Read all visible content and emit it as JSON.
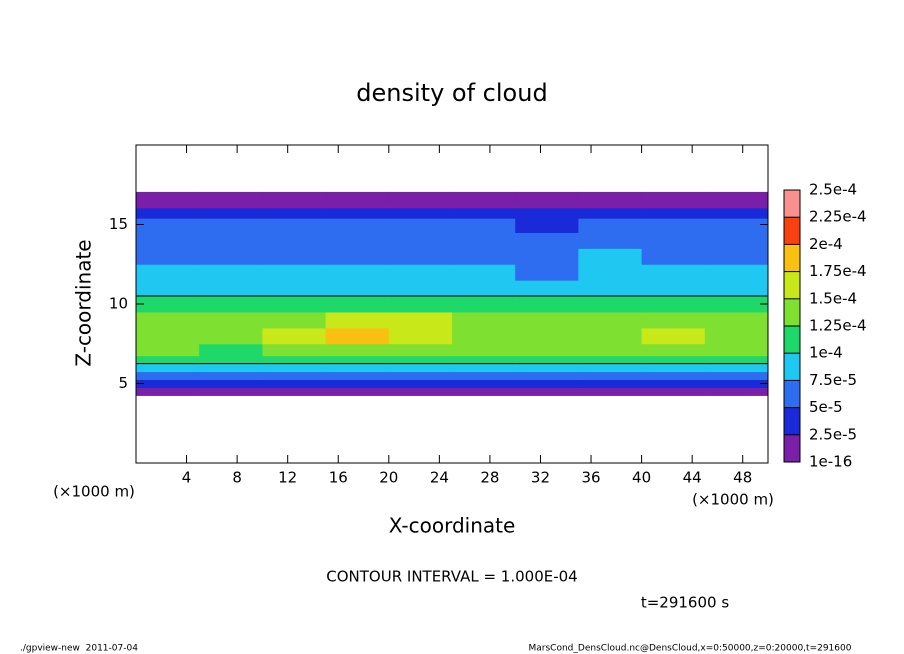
{
  "chart_data": {
    "type": "heatmap",
    "title": "density of cloud",
    "xlabel": "X-coordinate",
    "ylabel": "Z-coordinate",
    "x_unit": "(×1000 m)",
    "y_unit": "(×1000 m)",
    "xlim": [
      0,
      50
    ],
    "ylim": [
      0,
      20
    ],
    "xticks": [
      4,
      8,
      12,
      16,
      20,
      24,
      28,
      32,
      36,
      40,
      44,
      48
    ],
    "yticks": [
      5,
      10,
      15
    ],
    "x": [
      2.5,
      7.5,
      12.5,
      17.5,
      22.5,
      27.5,
      32.5,
      37.5,
      42.5,
      47.5
    ],
    "y": [
      4.5,
      5.0,
      5.5,
      6.0,
      6.5,
      7,
      8,
      9,
      10,
      11,
      12,
      13,
      14,
      15,
      15.8,
      16.3,
      16.8
    ],
    "values": [
      [
        1e-05,
        1e-05,
        1e-05,
        1e-05,
        1e-05,
        1e-05,
        1e-05,
        1e-05,
        1e-05,
        1e-05
      ],
      [
        4e-05,
        3.5e-05,
        4e-05,
        3.5e-05,
        4e-05,
        4e-05,
        3.5e-05,
        4e-05,
        4e-05,
        4e-05
      ],
      [
        6e-05,
        6.5e-05,
        6e-05,
        6e-05,
        6.5e-05,
        6e-05,
        6e-05,
        6.5e-05,
        6e-05,
        6e-05
      ],
      [
        8.5e-05,
        8e-05,
        9e-05,
        8.5e-05,
        8.5e-05,
        8e-05,
        8.5e-05,
        9e-05,
        8.5e-05,
        8e-05
      ],
      [
        0.000105,
        0.000102,
        0.00011,
        0.000108,
        0.000105,
        0.000103,
        0.000104,
        0.000106,
        0.000108,
        0.000102
      ],
      [
        0.000125,
        0.000122,
        0.000135,
        0.000145,
        0.000138,
        0.00013,
        0.000128,
        0.000132,
        0.00014,
        0.00013
      ],
      [
        0.00014,
        0.000138,
        0.000155,
        0.000185,
        0.000162,
        0.000148,
        0.000142,
        0.000145,
        0.000158,
        0.000145
      ],
      [
        0.000135,
        0.00013,
        0.000145,
        0.00017,
        0.00015,
        0.00014,
        0.000135,
        0.000138,
        0.000145,
        0.000138
      ],
      [
        0.000105,
        0.000108,
        0.000112,
        0.000115,
        0.00011,
        0.000108,
        0.000105,
        0.000102,
        0.000106,
        0.000104
      ],
      [
        8.8e-05,
        8.5e-05,
        9e-05,
        9e-05,
        8.8e-05,
        8.6e-05,
        8.4e-05,
        8.2e-05,
        8.5e-05,
        8.6e-05
      ],
      [
        7.8e-05,
        7.6e-05,
        7.8e-05,
        8e-05,
        7.8e-05,
        7.6e-05,
        7.4e-05,
        7.8e-05,
        7.6e-05,
        7.7e-05
      ],
      [
        7e-05,
        6.8e-05,
        7e-05,
        7.2e-05,
        7e-05,
        6.8e-05,
        6.5e-05,
        7.6e-05,
        7e-05,
        6.8e-05
      ],
      [
        6.2e-05,
        6e-05,
        6.2e-05,
        6.5e-05,
        6.2e-05,
        5.8e-05,
        5.6e-05,
        7e-05,
        6.2e-05,
        6e-05
      ],
      [
        5.5e-05,
        5.2e-05,
        5.5e-05,
        5.8e-05,
        5.4e-05,
        5.2e-05,
        4.8e-05,
        6e-05,
        5.5e-05,
        5.2e-05
      ],
      [
        3.5e-05,
        3.2e-05,
        3.5e-05,
        3.6e-05,
        3.3e-05,
        3e-05,
        3e-05,
        3.8e-05,
        3.4e-05,
        3.2e-05
      ],
      [
        1.5e-05,
        1.5e-05,
        1.5e-05,
        1.5e-05,
        1.5e-05,
        1.5e-05,
        1.5e-05,
        1.5e-05,
        1.5e-05,
        1.5e-05
      ],
      [
        8e-06,
        8e-06,
        8e-06,
        8e-06,
        8e-06,
        8e-06,
        8e-06,
        8e-06,
        8e-06,
        8e-06
      ]
    ],
    "contour_interval": 0.0001,
    "colorbar": {
      "ticks": [
        {
          "value": 1e-16,
          "label": "1e-16"
        },
        {
          "value": 2.5e-05,
          "label": "2.5e-5"
        },
        {
          "value": 5e-05,
          "label": "5e-5"
        },
        {
          "value": 7.5e-05,
          "label": "7.5e-5"
        },
        {
          "value": 0.0001,
          "label": "1e-4"
        },
        {
          "value": 0.000125,
          "label": "1.25e-4"
        },
        {
          "value": 0.00015,
          "label": "1.5e-4"
        },
        {
          "value": 0.000175,
          "label": "1.75e-4"
        },
        {
          "value": 0.0002,
          "label": "2e-4"
        },
        {
          "value": 0.000225,
          "label": "2.25e-4"
        },
        {
          "value": 0.00025,
          "label": "2.5e-4"
        }
      ],
      "colors": [
        "#7a1fa8",
        "#1a2ad8",
        "#2e6cf0",
        "#1fc8f0",
        "#1ed86a",
        "#7ee030",
        "#c8e81a",
        "#f8c010",
        "#f84010",
        "#f89090"
      ]
    },
    "annotations": [
      "CONTOUR INTERVAL = 1.000E-04",
      "t=291600 s"
    ],
    "footer_left": "./gpview-new  2011-07-04",
    "footer_right": "MarsCond_DensCloud.nc@DensCloud,x=0:50000,z=0:20000,t=291600"
  }
}
